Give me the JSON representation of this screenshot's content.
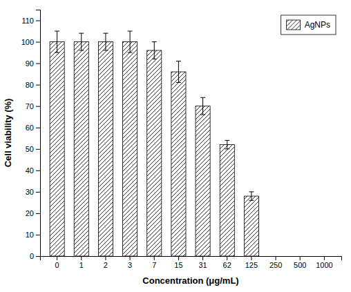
{
  "chart_data": {
    "type": "bar",
    "categories": [
      "0",
      "1",
      "2",
      "3",
      "7",
      "15",
      "31",
      "62",
      "125",
      "250",
      "500",
      "1000"
    ],
    "series": [
      {
        "name": "AgNPs",
        "color": "#000000",
        "values": [
          100,
          100,
          100,
          100,
          96,
          86,
          70,
          52,
          28,
          null,
          null,
          null
        ],
        "errors": [
          5,
          4,
          4,
          5,
          4,
          5,
          4,
          2,
          2,
          null,
          null,
          null
        ]
      }
    ],
    "x_label": "Concentration (μg/mL)",
    "y_label": "Cell viability (%)",
    "ylim": [
      0,
      115
    ],
    "yticks": [
      0,
      10,
      20,
      30,
      40,
      50,
      60,
      70,
      80,
      90,
      100,
      110
    ],
    "grid": false,
    "legend": "upper right"
  }
}
